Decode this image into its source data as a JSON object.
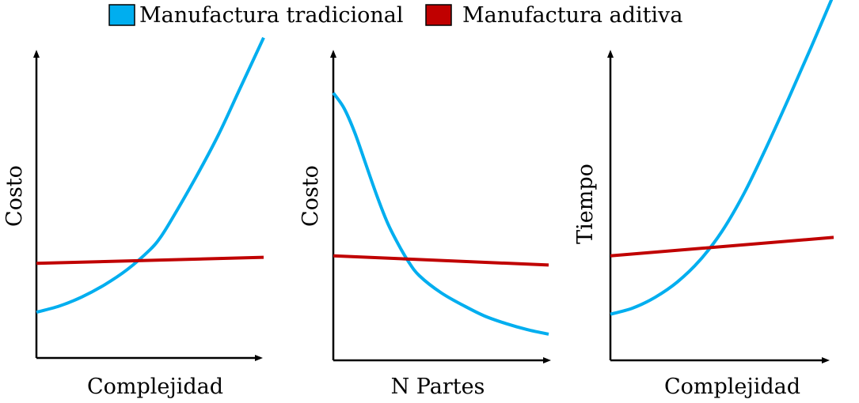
{
  "legend": {
    "items": [
      {
        "label": "Manufactura tradicional",
        "color": "#00AEEF"
      },
      {
        "label": "Manufactura aditiva",
        "color": "#C00000"
      }
    ]
  },
  "chart_data": [
    {
      "type": "line",
      "xlabel": "Complejidad",
      "ylabel": "Costo",
      "xlim": [
        0,
        10
      ],
      "ylim": [
        0,
        10
      ],
      "series": [
        {
          "name": "Manufactura tradicional",
          "color": "#00AEEF",
          "x": [
            0,
            1,
            2,
            3,
            4,
            5,
            5.5,
            6,
            7,
            8,
            9,
            10
          ],
          "y": [
            1.5,
            1.7,
            2.0,
            2.4,
            2.9,
            3.55,
            4.0,
            4.6,
            5.9,
            7.3,
            8.9,
            10.5
          ]
        },
        {
          "name": "Manufactura aditiva",
          "color": "#C00000",
          "x": [
            0,
            10
          ],
          "y": [
            3.1,
            3.3
          ]
        }
      ]
    },
    {
      "type": "line",
      "xlabel": "N Partes",
      "ylabel": "Costo",
      "xlim": [
        0,
        10
      ],
      "ylim": [
        0,
        10
      ],
      "series": [
        {
          "name": "Manufactura tradicional",
          "color": "#00AEEF",
          "x": [
            0,
            0.5,
            1,
            1.5,
            2,
            2.5,
            3,
            3.5,
            4,
            5,
            6,
            7,
            8,
            9,
            10
          ],
          "y": [
            8.7,
            8.2,
            7.4,
            6.4,
            5.4,
            4.5,
            3.8,
            3.2,
            2.75,
            2.2,
            1.8,
            1.45,
            1.2,
            1.0,
            0.85
          ]
        },
        {
          "name": "Manufactura aditiva",
          "color": "#C00000",
          "x": [
            0,
            10
          ],
          "y": [
            3.4,
            3.1
          ]
        }
      ]
    },
    {
      "type": "line",
      "xlabel": "Complejidad",
      "ylabel": "Tiempo",
      "xlim": [
        0,
        10
      ],
      "ylim": [
        0,
        10
      ],
      "series": [
        {
          "name": "Manufactura tradicional",
          "color": "#00AEEF",
          "x": [
            0,
            1,
            2,
            3,
            4,
            5,
            6,
            7,
            8,
            9,
            10
          ],
          "y": [
            1.5,
            1.7,
            2.05,
            2.55,
            3.25,
            4.2,
            5.45,
            6.95,
            8.55,
            10.2,
            11.9
          ]
        },
        {
          "name": "Manufactura aditiva",
          "color": "#C00000",
          "x": [
            0,
            10
          ],
          "y": [
            3.4,
            4.0
          ]
        }
      ]
    }
  ]
}
